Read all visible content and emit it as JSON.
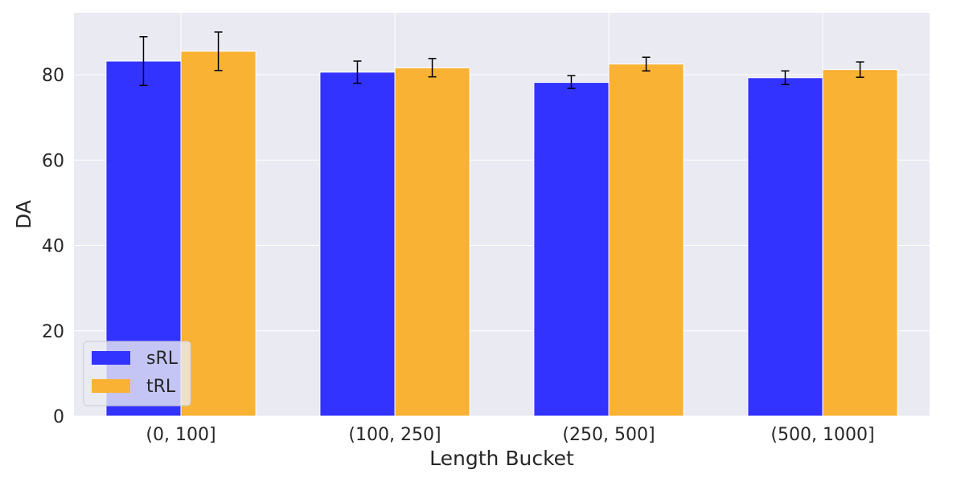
{
  "chart_data": {
    "type": "bar",
    "title": "",
    "xlabel": "Length Bucket",
    "ylabel": "DA",
    "categories": [
      "(0, 100]",
      "(100, 250]",
      "(250, 500]",
      "(500, 1000]"
    ],
    "series": [
      {
        "name": "sRL",
        "color": "#3333ff",
        "values": [
          83.2,
          80.6,
          78.2,
          79.3
        ],
        "err_low": [
          77.5,
          78.0,
          76.8,
          77.7
        ],
        "err_high": [
          88.9,
          83.2,
          79.8,
          80.9
        ]
      },
      {
        "name": "tRL",
        "color": "#f9b233",
        "values": [
          85.5,
          81.6,
          82.5,
          81.2
        ],
        "err_low": [
          81.0,
          79.5,
          80.9,
          79.4
        ],
        "err_high": [
          90.0,
          83.8,
          84.1,
          83.0
        ]
      }
    ],
    "ylim": [
      0,
      94.5
    ],
    "yticks": [
      "0",
      "20",
      "40",
      "60",
      "80"
    ],
    "grid": true,
    "legend_position": "lower-left",
    "background_color": "#eaeaf2",
    "grid_color": "#ffffff"
  }
}
